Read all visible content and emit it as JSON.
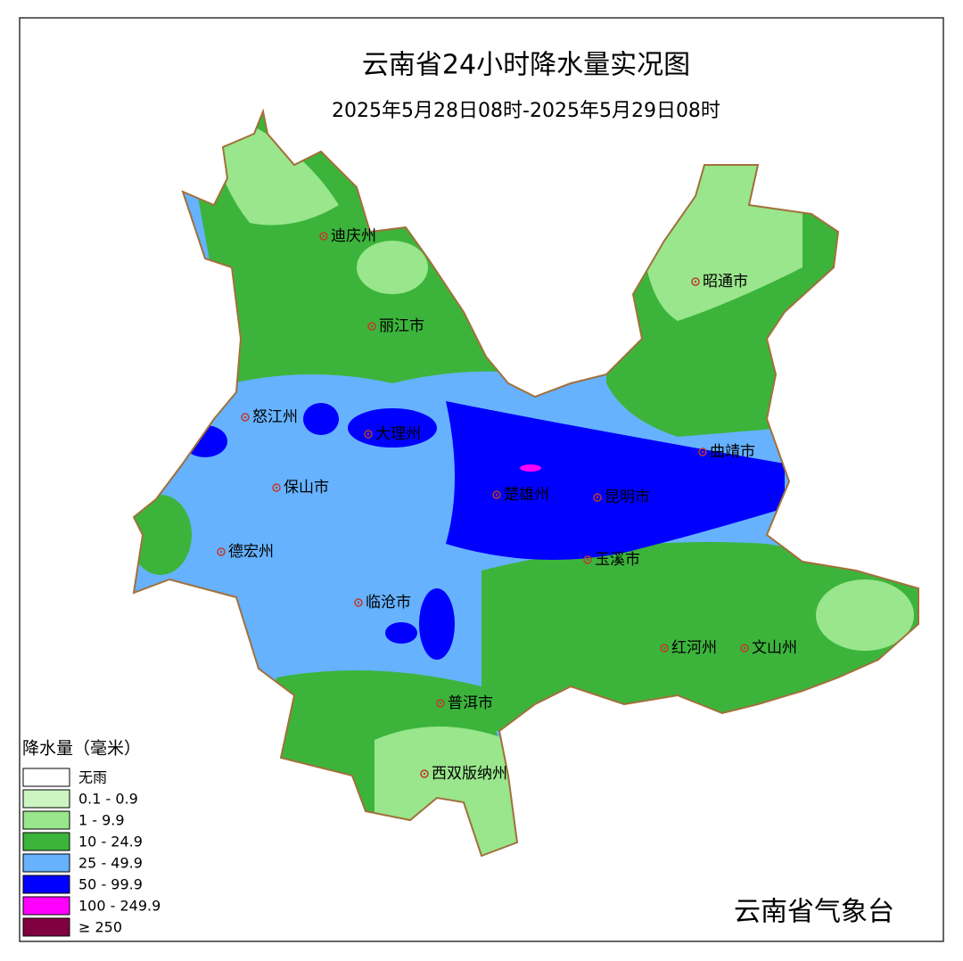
{
  "header": {
    "title": "云南省24小时降水量实况图",
    "subtitle": "2025年5月28日08时-2025年5月29日08时"
  },
  "cities": [
    "迪庆州",
    "丽江市",
    "怒江州",
    "大理州",
    "保山市",
    "德宏州",
    "临沧市",
    "楚雄州",
    "昆明市",
    "曲靖市",
    "昭通市",
    "玉溪市",
    "红河州",
    "文山州",
    "普洱市",
    "西双版纳州"
  ],
  "legend": {
    "title": "降水量（毫米）",
    "items": [
      {
        "label": "无雨",
        "color": "#ffffff"
      },
      {
        "label": "0.1 - 0.9",
        "color": "#ccf5c2"
      },
      {
        "label": "1 -  9.9",
        "color": "#99e68c"
      },
      {
        "label": "10 - 24.9",
        "color": "#3cb43c"
      },
      {
        "label": "25 - 49.9",
        "color": "#66b2ff"
      },
      {
        "label": "50 - 99.9",
        "color": "#0000ff"
      },
      {
        "label": "100 - 249.9",
        "color": "#ff00ff"
      },
      {
        "label": "≥ 250",
        "color": "#800040"
      }
    ]
  },
  "footer": {
    "publisher": "云南省气象台"
  }
}
